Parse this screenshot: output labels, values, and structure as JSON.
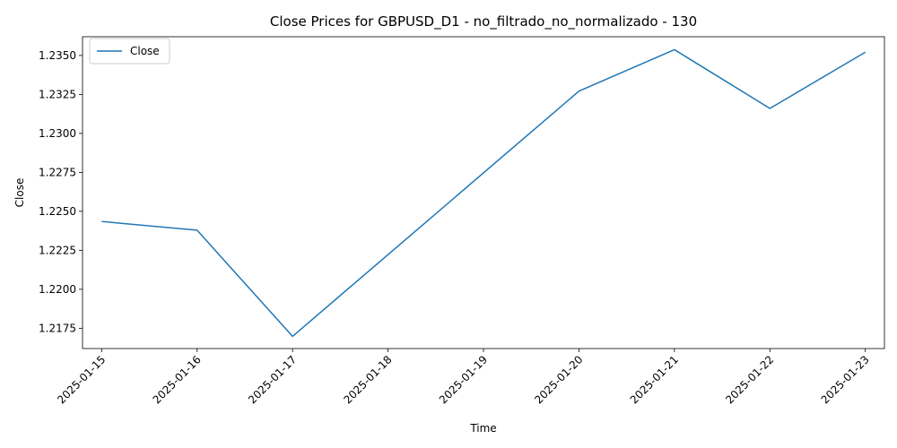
{
  "chart_data": {
    "type": "line",
    "title": "Close Prices for GBPUSD_D1 - no_filtrado_no_normalizado - 130",
    "xlabel": "Time",
    "ylabel": "Close",
    "x_ticks": [
      "2025-01-15",
      "2025-01-16",
      "2025-01-17",
      "2025-01-18",
      "2025-01-19",
      "2025-01-20",
      "2025-01-21",
      "2025-01-22",
      "2025-01-23"
    ],
    "y_ticks": [
      "1.2175",
      "1.2200",
      "1.2225",
      "1.2250",
      "1.2275",
      "1.2300",
      "1.2325",
      "1.2350"
    ],
    "ylim": [
      1.2162,
      1.2362
    ],
    "xlim": [
      "2025-01-14 19:12",
      "2025-01-23 04:48"
    ],
    "legend": {
      "position": "top-left",
      "entries": [
        "Close"
      ]
    },
    "grid": false,
    "series": [
      {
        "name": "Close",
        "color": "#1f77b4",
        "points": [
          {
            "x": "2025-01-15",
            "y": 1.22435
          },
          {
            "x": "2025-01-16",
            "y": 1.22379
          },
          {
            "x": "2025-01-17",
            "y": 1.21698
          },
          {
            "x": "2025-01-20",
            "y": 1.23271
          },
          {
            "x": "2025-01-21",
            "y": 1.23537
          },
          {
            "x": "2025-01-22",
            "y": 1.2316
          },
          {
            "x": "2025-01-23",
            "y": 1.23521
          }
        ]
      }
    ]
  }
}
